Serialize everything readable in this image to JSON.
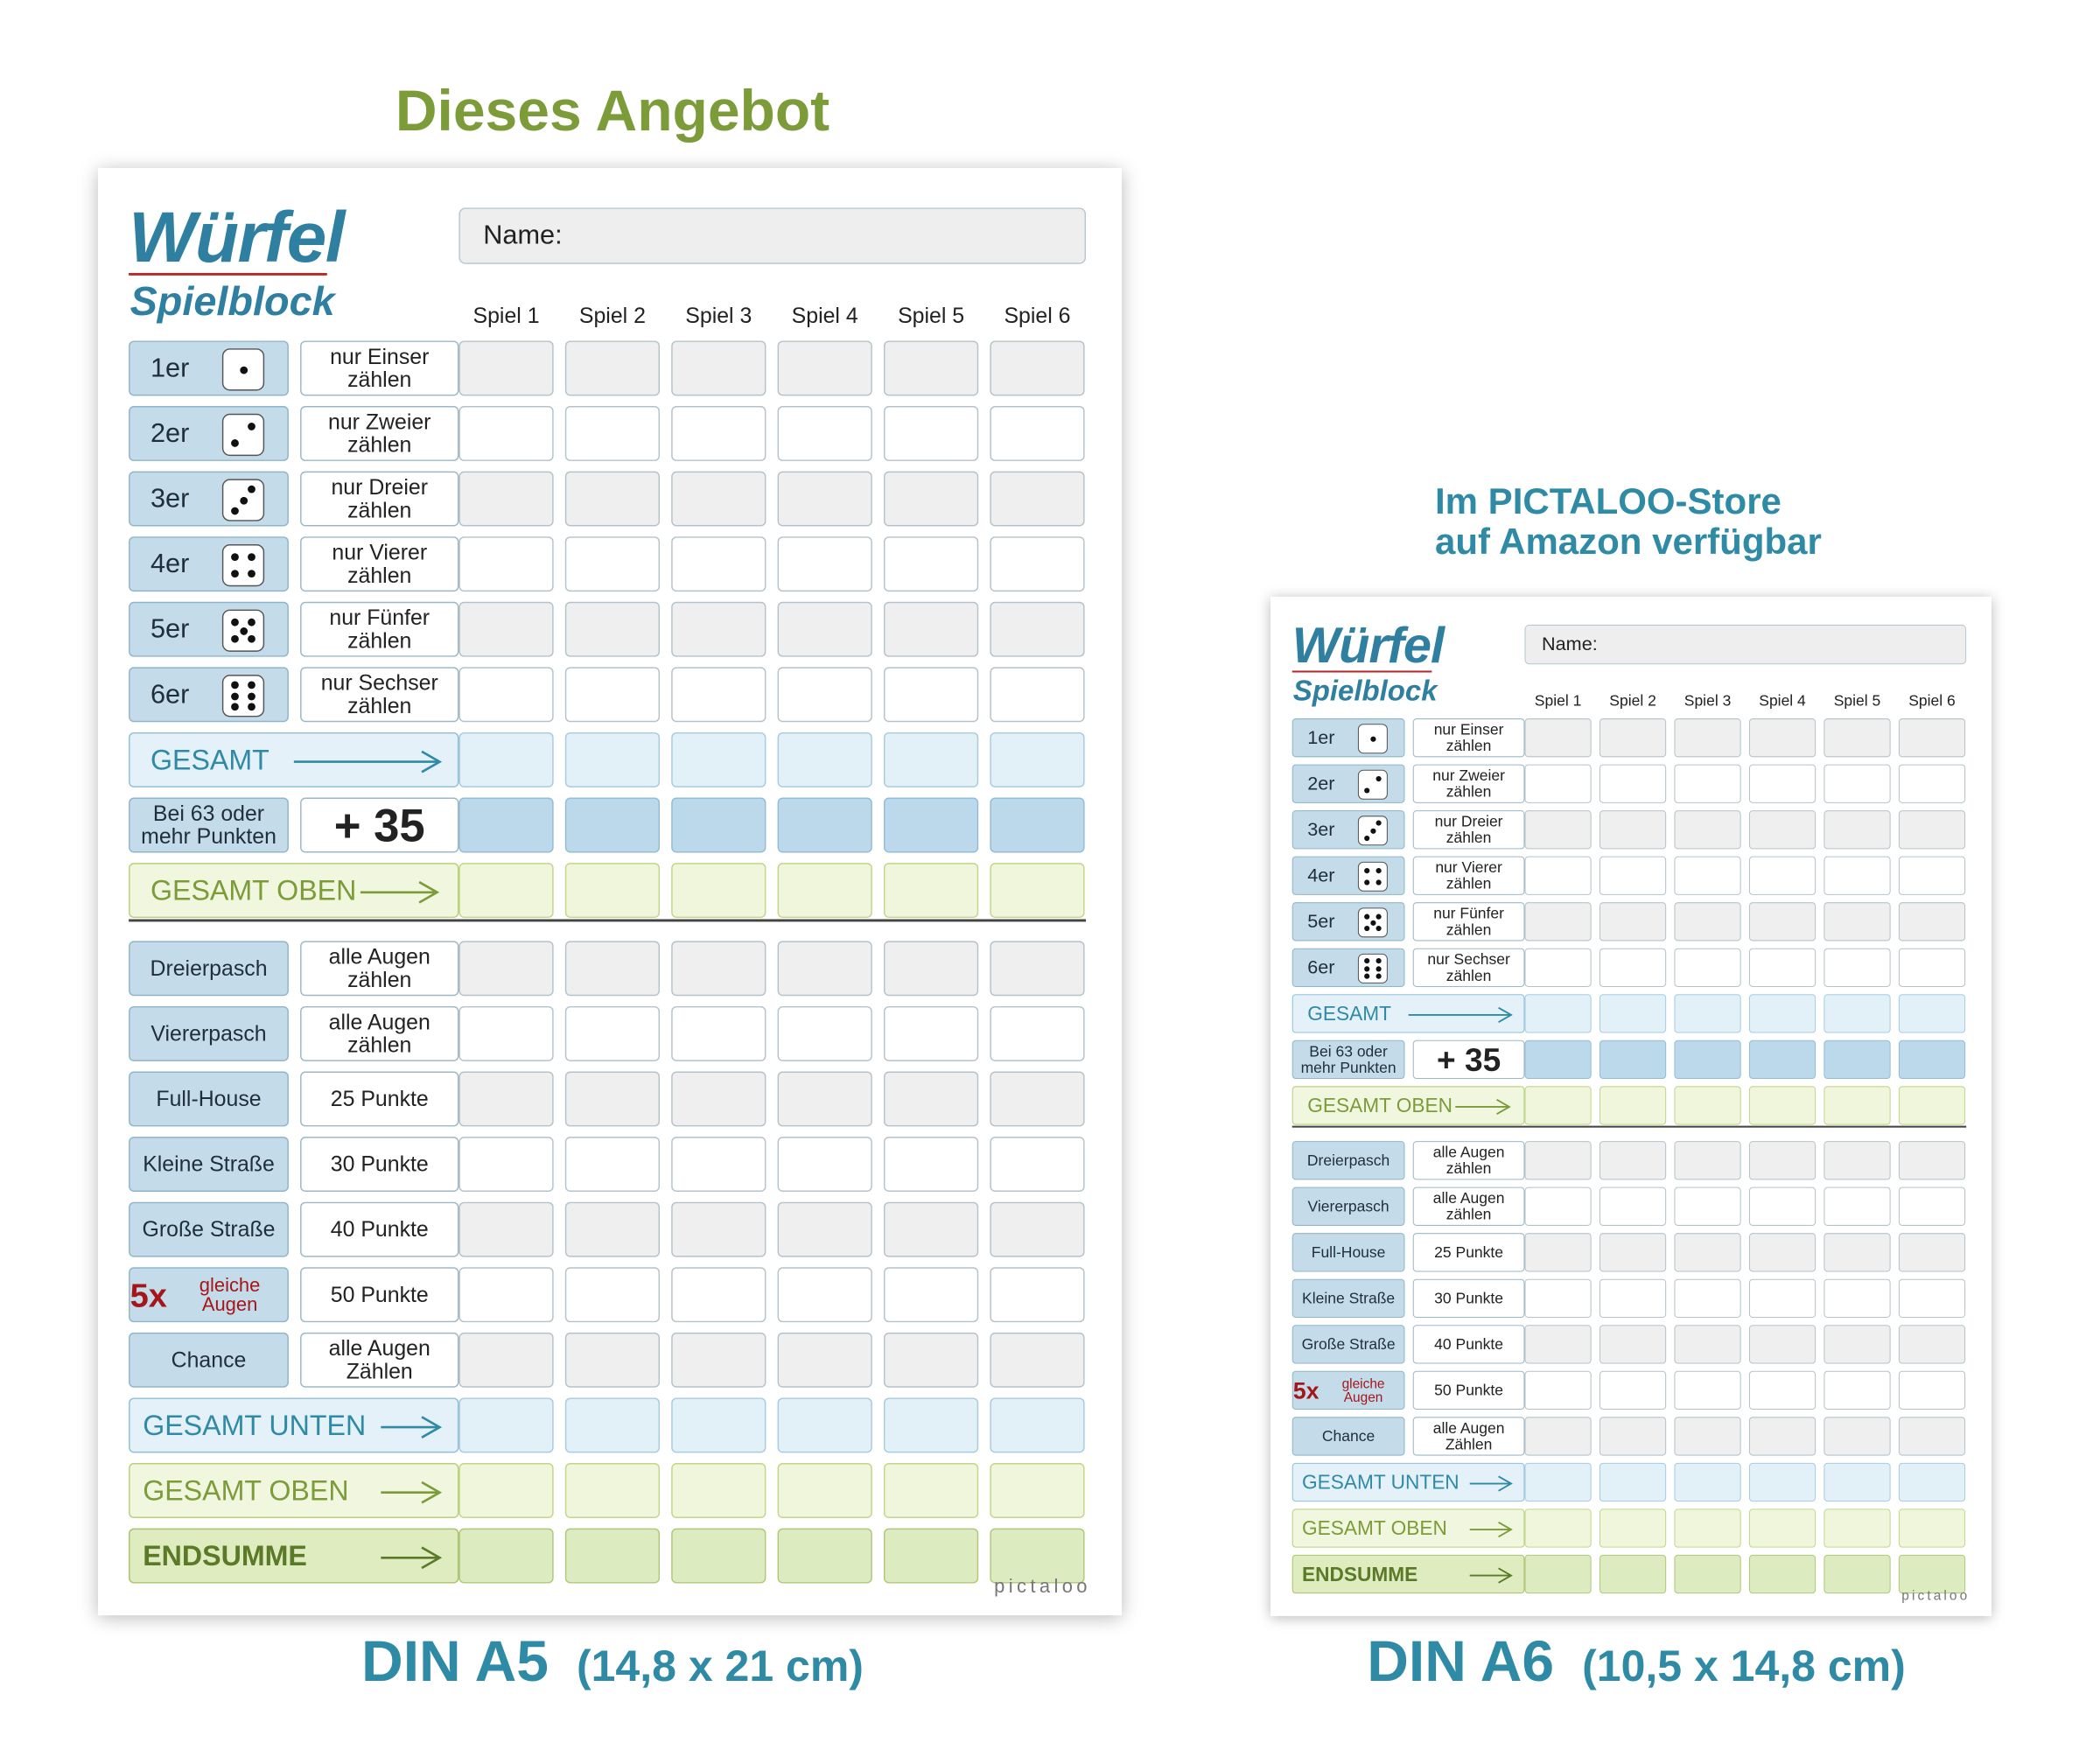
{
  "headings": {
    "offer": "Dieses Angebot",
    "store_line1": "Im PICTALOO-Store",
    "store_line2": "auf Amazon verfügbar"
  },
  "captions": {
    "a5_size": "DIN A5",
    "a5_dims": "(14,8 x 21 cm)",
    "a6_size": "DIN A6",
    "a6_dims": "(10,5 x 14,8 cm)"
  },
  "sheet": {
    "logo_main": "Würfel",
    "logo_sub": "Spielblock",
    "name_label": "Name:",
    "columns": [
      "Spiel 1",
      "Spiel 2",
      "Spiel 3",
      "Spiel 4",
      "Spiel 5",
      "Spiel 6"
    ],
    "upper_rows": [
      {
        "label": "1er",
        "pips": 1,
        "desc": "nur Einser zählen"
      },
      {
        "label": "2er",
        "pips": 2,
        "desc": "nur Zweier zählen"
      },
      {
        "label": "3er",
        "pips": 3,
        "desc": "nur Dreier zählen"
      },
      {
        "label": "4er",
        "pips": 4,
        "desc": "nur Vierer zählen"
      },
      {
        "label": "5er",
        "pips": 5,
        "desc": "nur Fünfer zählen"
      },
      {
        "label": "6er",
        "pips": 6,
        "desc": "nur Sechser zählen"
      }
    ],
    "gesamt": "GESAMT",
    "bonus_label": "Bei 63 oder mehr Punkten",
    "bonus_value": "+ 35",
    "gesamt_oben": "GESAMT OBEN",
    "lower_rows": [
      {
        "label": "Dreierpasch",
        "desc": "alle Augen zählen"
      },
      {
        "label": "Viererpasch",
        "desc": "alle Augen zählen"
      },
      {
        "label": "Full-House",
        "desc": "25 Punkte"
      },
      {
        "label": "Kleine Straße",
        "desc": "30 Punkte"
      },
      {
        "label": "Große Straße",
        "desc": "40 Punkte"
      },
      {
        "label": "5x",
        "label_small": "gleiche Augen",
        "desc": "50 Punkte"
      },
      {
        "label": "Chance",
        "desc": "alle Augen Zählen"
      }
    ],
    "gesamt_unten": "GESAMT UNTEN",
    "gesamt_oben_2": "GESAMT OBEN",
    "endsumme": "ENDSUMME",
    "brand": "pictaloo"
  },
  "colors": {
    "accent_blue": "#2f8aa6",
    "accent_green": "#7c9b39",
    "accent_red": "#a4161a"
  }
}
